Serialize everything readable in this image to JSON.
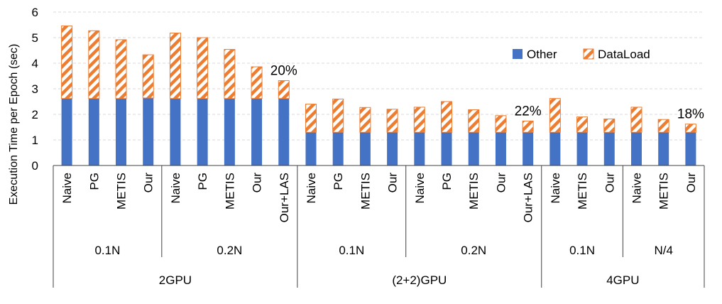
{
  "chart_data": {
    "type": "bar",
    "stacked": true,
    "ylabel": "Execution Time per Epoch (sec)",
    "ylim": [
      0,
      6
    ],
    "yticks": [
      "0",
      "1",
      "2",
      "3",
      "4",
      "5",
      "6"
    ],
    "grid": true,
    "legend_position": "upper-right",
    "colors": {
      "Other": "#4472C4",
      "DataLoad": "#ED7D31"
    },
    "categories": [
      "Naive",
      "PG",
      "METIS",
      "Our",
      "Naive",
      "PG",
      "METIS",
      "Our",
      "Our+LAS",
      "Naive",
      "PG",
      "METIS",
      "Our",
      "Naive",
      "PG",
      "METIS",
      "Our",
      "Our+LAS",
      "Naive",
      "METIS",
      "Our",
      "Naive",
      "METIS",
      "Our"
    ],
    "series": [
      {
        "name": "Other",
        "values": [
          2.62,
          2.62,
          2.62,
          2.64,
          2.62,
          2.62,
          2.62,
          2.62,
          2.62,
          1.3,
          1.3,
          1.3,
          1.3,
          1.3,
          1.3,
          1.3,
          1.3,
          1.3,
          1.3,
          1.3,
          1.3,
          1.3,
          1.3,
          1.3
        ]
      },
      {
        "name": "DataLoad",
        "values": [
          2.84,
          2.65,
          2.3,
          1.69,
          2.56,
          2.38,
          1.92,
          1.24,
          0.7,
          1.1,
          1.3,
          0.97,
          0.9,
          0.98,
          1.2,
          0.88,
          0.65,
          0.44,
          1.32,
          0.6,
          0.52,
          0.98,
          0.5,
          0.32
        ]
      }
    ],
    "annotations": [
      {
        "text": "20%",
        "index": 8
      },
      {
        "text": "22%",
        "index": 17
      },
      {
        "text": "18%",
        "index": 23
      }
    ],
    "groups_level1": [
      {
        "label": "0.1N",
        "start": 0,
        "end": 3
      },
      {
        "label": "0.2N",
        "start": 4,
        "end": 8
      },
      {
        "label": "0.1N",
        "start": 9,
        "end": 12
      },
      {
        "label": "0.2N",
        "start": 13,
        "end": 17
      },
      {
        "label": "0.1N",
        "start": 18,
        "end": 20
      },
      {
        "label": "N/4",
        "start": 21,
        "end": 23
      }
    ],
    "groups_level2": [
      {
        "label": "2GPU",
        "start": 0,
        "end": 8
      },
      {
        "label": "(2+2)GPU",
        "start": 9,
        "end": 17
      },
      {
        "label": "4GPU",
        "start": 18,
        "end": 23
      }
    ]
  }
}
